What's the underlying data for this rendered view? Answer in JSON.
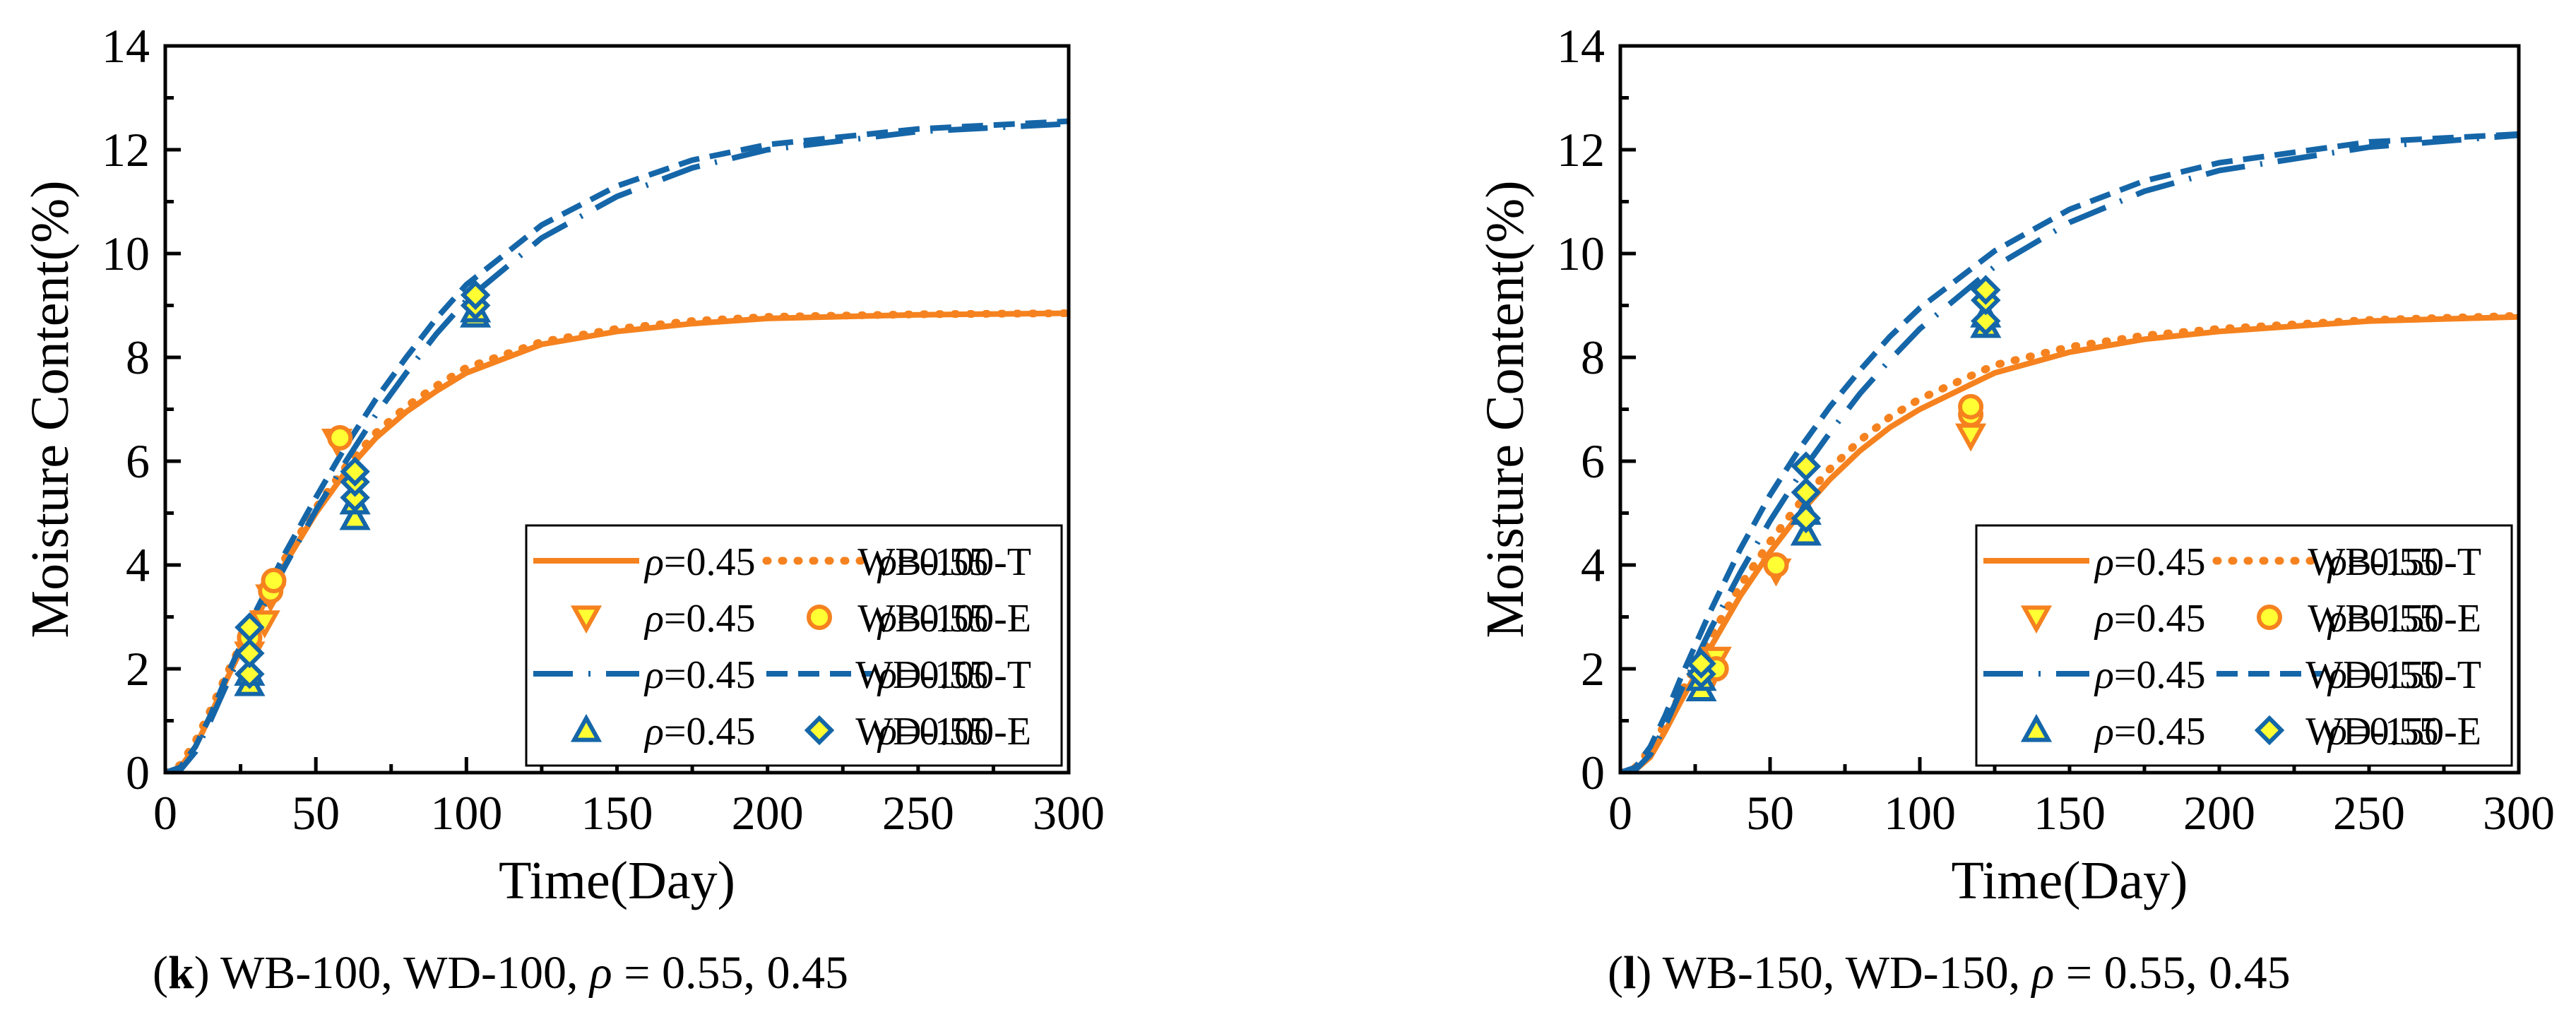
{
  "colors": {
    "orange": "#f5821f",
    "blue": "#1566a8",
    "yellow": "#ffff33",
    "axis": "#000000"
  },
  "chart_data": [
    {
      "id": "k",
      "type": "line",
      "xlabel": "Time(Day)",
      "ylabel": "Moisture Content(%)",
      "xlim": [
        0,
        300
      ],
      "ylim": [
        0,
        14
      ],
      "xticks": [
        "0",
        "50",
        "100",
        "150",
        "200",
        "250",
        "300"
      ],
      "yticks": [
        "0",
        "2",
        "4",
        "6",
        "8",
        "10",
        "12",
        "14"
      ],
      "legend_position": "bottom-right",
      "legend": {
        "rows": [
          {
            "left": "=0.45",
            "right": "=0.55",
            "label": "WB-100-T"
          },
          {
            "left": "=0.45",
            "right": "=0.55",
            "label": "WB-100-E"
          },
          {
            "left": "=0.45",
            "right": "=0.55",
            "label": "WD-100-T"
          },
          {
            "left": "=0.45",
            "right": "=0.55",
            "label": "WD-100-E"
          }
        ]
      },
      "series": [
        {
          "name": "WB-100-T ρ=0.45",
          "style": "solid",
          "color": "orange",
          "x": [
            0,
            5,
            10,
            15,
            20,
            30,
            40,
            50,
            60,
            70,
            80,
            90,
            100,
            125,
            150,
            175,
            200,
            250,
            300
          ],
          "y": [
            0,
            0.1,
            0.5,
            1.1,
            1.75,
            2.95,
            4.05,
            5.0,
            5.8,
            6.45,
            6.95,
            7.35,
            7.7,
            8.25,
            8.5,
            8.65,
            8.75,
            8.82,
            8.85
          ]
        },
        {
          "name": "WB-100-T ρ=0.55",
          "style": "dotted",
          "color": "orange",
          "x": [
            0,
            5,
            10,
            15,
            20,
            30,
            40,
            50,
            60,
            70,
            80,
            90,
            100,
            125,
            150,
            175,
            200,
            250,
            300
          ],
          "y": [
            0,
            0.15,
            0.6,
            1.2,
            1.85,
            3.05,
            4.15,
            5.1,
            5.9,
            6.55,
            7.05,
            7.45,
            7.8,
            8.3,
            8.55,
            8.7,
            8.78,
            8.83,
            8.85
          ]
        },
        {
          "name": "WD-100-T ρ=0.45",
          "style": "dashdot",
          "color": "blue",
          "x": [
            0,
            5,
            10,
            15,
            20,
            30,
            40,
            50,
            60,
            70,
            80,
            90,
            100,
            125,
            150,
            175,
            200,
            250,
            300
          ],
          "y": [
            0,
            0.05,
            0.4,
            1.0,
            1.65,
            2.9,
            4.0,
            5.05,
            6.0,
            6.9,
            7.7,
            8.45,
            9.1,
            10.3,
            11.1,
            11.65,
            12.0,
            12.35,
            12.5
          ]
        },
        {
          "name": "WD-100-T ρ=0.55",
          "style": "dashed",
          "color": "blue",
          "x": [
            0,
            5,
            10,
            15,
            20,
            30,
            40,
            50,
            60,
            70,
            80,
            90,
            100,
            125,
            150,
            175,
            200,
            250,
            300
          ],
          "y": [
            0,
            0.1,
            0.5,
            1.1,
            1.8,
            3.1,
            4.25,
            5.3,
            6.3,
            7.2,
            8.0,
            8.75,
            9.4,
            10.55,
            11.3,
            11.8,
            12.1,
            12.4,
            12.55
          ]
        }
      ],
      "markers": [
        {
          "name": "WB-100-E ρ=0.45",
          "shape": "triangle-down",
          "stroke": "orange",
          "fill": "yellow",
          "points": [
            [
              28,
              2.3
            ],
            [
              33,
              2.9
            ],
            [
              35,
              3.4
            ],
            [
              57,
              6.4
            ]
          ]
        },
        {
          "name": "WB-100-E ρ=0.55",
          "shape": "circle",
          "stroke": "orange",
          "fill": "yellow",
          "points": [
            [
              28,
              2.6
            ],
            [
              35,
              3.5
            ],
            [
              36,
              3.7
            ],
            [
              58,
              6.45
            ]
          ]
        },
        {
          "name": "WD-100-E ρ=0.45",
          "shape": "triangle-up",
          "stroke": "blue",
          "fill": "yellow",
          "points": [
            [
              28,
              1.7
            ],
            [
              28,
              1.9
            ],
            [
              63,
              4.9
            ],
            [
              63,
              5.2
            ],
            [
              103,
              8.8
            ],
            [
              103,
              8.9
            ]
          ]
        },
        {
          "name": "WD-100-E ρ=0.55",
          "shape": "diamond",
          "stroke": "blue",
          "fill": "yellow",
          "points": [
            [
              28,
              1.9
            ],
            [
              28,
              2.3
            ],
            [
              28,
              2.8
            ],
            [
              63,
              5.3
            ],
            [
              63,
              5.6
            ],
            [
              63,
              5.8
            ],
            [
              103,
              9.0
            ],
            [
              103,
              9.2
            ]
          ]
        }
      ]
    },
    {
      "id": "l",
      "type": "line",
      "xlabel": "Time(Day)",
      "ylabel": "Moisture Content(%)",
      "xlim": [
        0,
        300
      ],
      "ylim": [
        0,
        14
      ],
      "xticks": [
        "0",
        "50",
        "100",
        "150",
        "200",
        "250",
        "300"
      ],
      "yticks": [
        "0",
        "2",
        "4",
        "6",
        "8",
        "10",
        "12",
        "14"
      ],
      "legend_position": "bottom-right",
      "legend": {
        "rows": [
          {
            "left": "=0.45",
            "right": "=0.55",
            "label": "WB-150-T"
          },
          {
            "left": "=0.45",
            "right": "=0.55",
            "label": "WB-150-E"
          },
          {
            "left": "=0.45",
            "right": "=0.55",
            "label": "WD-150-T"
          },
          {
            "left": "=0.45",
            "right": "=0.55",
            "label": "WD-150-E"
          }
        ]
      },
      "series": [
        {
          "name": "WB-150-T ρ=0.45",
          "style": "solid",
          "color": "orange",
          "x": [
            0,
            5,
            10,
            15,
            20,
            30,
            40,
            50,
            60,
            70,
            80,
            90,
            100,
            125,
            150,
            175,
            200,
            250,
            300
          ],
          "y": [
            0,
            0.05,
            0.3,
            0.8,
            1.35,
            2.4,
            3.4,
            4.25,
            5.0,
            5.65,
            6.2,
            6.65,
            7.0,
            7.7,
            8.1,
            8.35,
            8.5,
            8.7,
            8.78
          ]
        },
        {
          "name": "WB-150-T ρ=0.55",
          "style": "dotted",
          "color": "orange",
          "x": [
            0,
            5,
            10,
            15,
            20,
            30,
            40,
            50,
            60,
            70,
            80,
            90,
            100,
            125,
            150,
            175,
            200,
            250,
            300
          ],
          "y": [
            0,
            0.1,
            0.45,
            0.95,
            1.5,
            2.6,
            3.6,
            4.45,
            5.2,
            5.85,
            6.4,
            6.85,
            7.2,
            7.85,
            8.2,
            8.42,
            8.55,
            8.72,
            8.8
          ]
        },
        {
          "name": "WD-150-T ρ=0.45",
          "style": "dashdot",
          "color": "blue",
          "x": [
            0,
            5,
            10,
            15,
            20,
            30,
            40,
            50,
            60,
            70,
            80,
            90,
            100,
            125,
            150,
            175,
            200,
            250,
            300
          ],
          "y": [
            0,
            0.05,
            0.35,
            0.9,
            1.55,
            2.75,
            3.85,
            4.85,
            5.75,
            6.55,
            7.3,
            7.95,
            8.55,
            9.75,
            10.6,
            11.2,
            11.6,
            12.05,
            12.28
          ]
        },
        {
          "name": "WD-150-T ρ=0.55",
          "style": "dashed",
          "color": "blue",
          "x": [
            0,
            5,
            10,
            15,
            20,
            30,
            40,
            50,
            60,
            70,
            80,
            90,
            100,
            125,
            150,
            175,
            200,
            250,
            300
          ],
          "y": [
            0,
            0.1,
            0.5,
            1.1,
            1.8,
            3.1,
            4.3,
            5.35,
            6.25,
            7.05,
            7.75,
            8.4,
            8.95,
            10.05,
            10.85,
            11.4,
            11.75,
            12.15,
            12.3
          ]
        }
      ],
      "markers": [
        {
          "name": "WB-150-E ρ=0.45",
          "shape": "triangle-down",
          "stroke": "orange",
          "fill": "yellow",
          "points": [
            [
              28,
              1.9
            ],
            [
              32,
              2.2
            ],
            [
              52,
              3.9
            ],
            [
              117,
              6.5
            ]
          ]
        },
        {
          "name": "WB-150-E ρ=0.55",
          "shape": "circle",
          "stroke": "orange",
          "fill": "yellow",
          "points": [
            [
              28,
              1.8
            ],
            [
              32,
              2.0
            ],
            [
              52,
              4.0
            ],
            [
              117,
              6.9
            ],
            [
              117,
              7.05
            ]
          ]
        },
        {
          "name": "WD-150-E ρ=0.45",
          "shape": "triangle-up",
          "stroke": "blue",
          "fill": "yellow",
          "points": [
            [
              27,
              1.6
            ],
            [
              27,
              1.8
            ],
            [
              62,
              4.6
            ],
            [
              62,
              5.0
            ],
            [
              122,
              8.6
            ],
            [
              122,
              8.8
            ]
          ]
        },
        {
          "name": "WD-150-E ρ=0.55",
          "shape": "diamond",
          "stroke": "blue",
          "fill": "yellow",
          "points": [
            [
              27,
              1.9
            ],
            [
              27,
              2.1
            ],
            [
              62,
              4.9
            ],
            [
              62,
              5.4
            ],
            [
              62,
              5.9
            ],
            [
              122,
              8.7
            ],
            [
              122,
              9.1
            ],
            [
              122,
              9.3
            ]
          ]
        }
      ]
    }
  ],
  "captions": [
    {
      "letter": "k",
      "text": " WB-100, WD-100, ",
      "rho": "ρ",
      "values": " = 0.55, 0.45"
    },
    {
      "letter": "l",
      "text": " WB-150, WD-150, ",
      "rho": "ρ",
      "values": " = 0.55, 0.45"
    }
  ]
}
